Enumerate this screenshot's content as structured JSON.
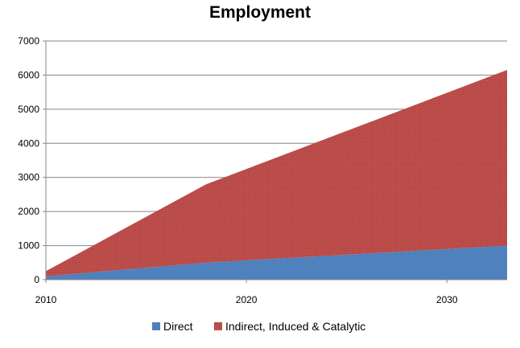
{
  "chart_data": {
    "type": "area",
    "stacked": true,
    "title": "Employment",
    "xlabel": "",
    "ylabel": "",
    "xlim": [
      2010,
      2033
    ],
    "ylim": [
      0,
      7000
    ],
    "yticks": [
      0,
      1000,
      2000,
      3000,
      4000,
      5000,
      6000,
      7000
    ],
    "xticks": [
      2010,
      2020,
      2030
    ],
    "grid": true,
    "legend": "bottom",
    "x": [
      2010,
      2018,
      2033
    ],
    "series": [
      {
        "name": "Direct",
        "color": "#4f81bd",
        "values": [
          100,
          500,
          1000
        ]
      },
      {
        "name": "Indirect, Induced & Catalytic",
        "color": "#c0504d",
        "values": [
          150,
          2300,
          5150
        ]
      }
    ]
  }
}
